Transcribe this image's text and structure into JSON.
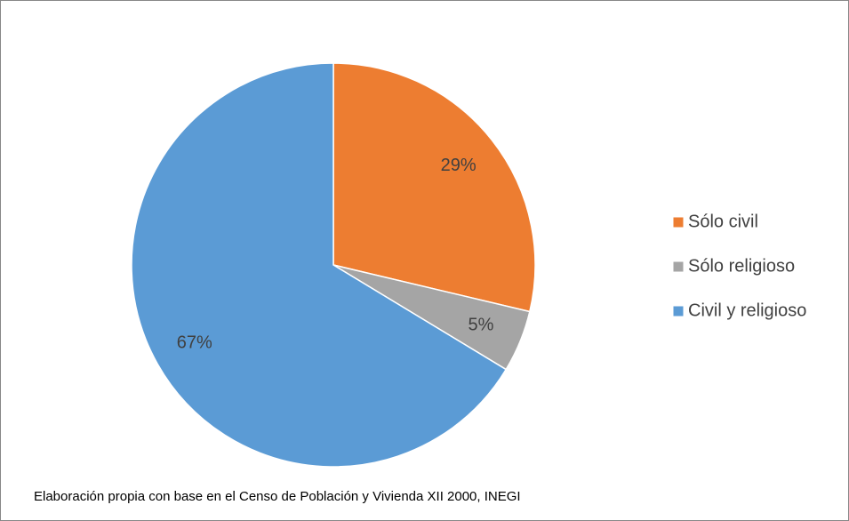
{
  "chart_data": {
    "type": "pie",
    "categories": [
      "Sólo civil",
      "Sólo religioso",
      "Civil y religioso"
    ],
    "values": [
      29,
      5,
      67
    ],
    "value_labels": [
      "29%",
      "5%",
      "67%"
    ],
    "colors": [
      "#ED7D31",
      "#A5A5A5",
      "#5B9BD5"
    ],
    "legend": "right",
    "note": "Elaboración propia con base en el Censo de Población y Vivienda XII 2000, INEGI"
  }
}
